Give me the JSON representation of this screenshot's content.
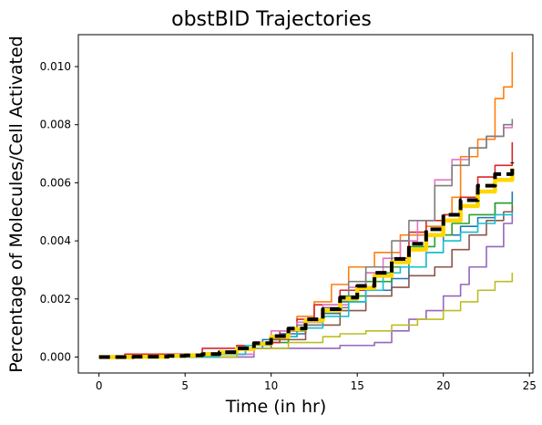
{
  "chart_data": {
    "type": "line",
    "title": "obstBID Trajectories",
    "xlabel": "Time (in hr)",
    "ylabel": "Percentage of Molecules/Cell Activated",
    "xlim": [
      -1.2,
      25.2
    ],
    "ylim": [
      -0.00055,
      0.0111
    ],
    "xticks": [
      0,
      5,
      10,
      15,
      20,
      25
    ],
    "xtick_labels": [
      "0",
      "5",
      "10",
      "15",
      "20",
      "25"
    ],
    "yticks": [
      0,
      0.002,
      0.004,
      0.006,
      0.008,
      0.01
    ],
    "ytick_labels": [
      "0.000",
      "0.002",
      "0.004",
      "0.006",
      "0.008",
      "0.010"
    ],
    "grid": false,
    "legend": "none",
    "series": [
      {
        "color": "#1f77b4",
        "points": [
          [
            0,
            0
          ],
          [
            5,
            0
          ],
          [
            7,
            0.0001
          ],
          [
            8.5,
            0.0003
          ],
          [
            9.5,
            0.0006
          ],
          [
            10.5,
            0.0008
          ],
          [
            12,
            0.0012
          ],
          [
            13,
            0.0015
          ],
          [
            14,
            0.0019
          ],
          [
            15.5,
            0.0023
          ],
          [
            17,
            0.0027
          ],
          [
            18,
            0.0031
          ],
          [
            19,
            0.0036
          ],
          [
            20,
            0.0042
          ],
          [
            21,
            0.0045
          ],
          [
            22,
            0.0048
          ],
          [
            23,
            0.0053
          ],
          [
            24,
            0.0057
          ]
        ]
      },
      {
        "color": "#ff7f0e",
        "points": [
          [
            0,
            0
          ],
          [
            5,
            0
          ],
          [
            7,
            0.0001
          ],
          [
            8.5,
            0.0004
          ],
          [
            10,
            0.0007
          ],
          [
            11.5,
            0.0014
          ],
          [
            12.5,
            0.0019
          ],
          [
            13.5,
            0.0025
          ],
          [
            14.5,
            0.0031
          ],
          [
            16,
            0.0036
          ],
          [
            17.5,
            0.0042
          ],
          [
            19,
            0.0045
          ],
          [
            20,
            0.0049
          ],
          [
            20.5,
            0.0055
          ],
          [
            21,
            0.0069
          ],
          [
            22,
            0.0075
          ],
          [
            23,
            0.0089
          ],
          [
            23.5,
            0.0093
          ],
          [
            24,
            0.0105
          ]
        ]
      },
      {
        "color": "#2ca02c",
        "points": [
          [
            0,
            0
          ],
          [
            5,
            0
          ],
          [
            7,
            0.0001
          ],
          [
            9,
            0.0005
          ],
          [
            11,
            0.0009
          ],
          [
            12,
            0.0013
          ],
          [
            13,
            0.0016
          ],
          [
            14,
            0.0021
          ],
          [
            15.5,
            0.0026
          ],
          [
            17,
            0.0031
          ],
          [
            18,
            0.0038
          ],
          [
            19.5,
            0.0042
          ],
          [
            20.5,
            0.0046
          ],
          [
            21.5,
            0.0049
          ],
          [
            23,
            0.0053
          ],
          [
            24,
            0.0051
          ]
        ]
      },
      {
        "color": "#d62728",
        "points": [
          [
            0,
            0
          ],
          [
            1.5,
            0.0001
          ],
          [
            4,
            0.0001
          ],
          [
            6,
            0.0003
          ],
          [
            8,
            0.0004
          ],
          [
            9.5,
            0.0005
          ],
          [
            10.5,
            0.0009
          ],
          [
            11.5,
            0.0013
          ],
          [
            12.5,
            0.0018
          ],
          [
            14,
            0.0023
          ],
          [
            15.5,
            0.0029
          ],
          [
            17,
            0.0034
          ],
          [
            18,
            0.0043
          ],
          [
            19,
            0.0047
          ],
          [
            20,
            0.0049
          ],
          [
            21,
            0.0055
          ],
          [
            22,
            0.0062
          ],
          [
            23,
            0.0066
          ],
          [
            24,
            0.0074
          ]
        ]
      },
      {
        "color": "#9467bd",
        "points": [
          [
            0,
            0
          ],
          [
            5,
            0
          ],
          [
            9,
            0.0003
          ],
          [
            12,
            0.0003
          ],
          [
            14,
            0.0004
          ],
          [
            15,
            0.0004
          ],
          [
            16,
            0.0005
          ],
          [
            17,
            0.0009
          ],
          [
            18,
            0.0013
          ],
          [
            19,
            0.0016
          ],
          [
            20,
            0.0021
          ],
          [
            21,
            0.0025
          ],
          [
            21.5,
            0.0031
          ],
          [
            22.5,
            0.0038
          ],
          [
            23.5,
            0.0046
          ],
          [
            24,
            0.0051
          ]
        ]
      },
      {
        "color": "#8c564b",
        "points": [
          [
            0,
            0
          ],
          [
            5,
            0
          ],
          [
            8,
            0.0003
          ],
          [
            10,
            0.0006
          ],
          [
            12,
            0.0011
          ],
          [
            14,
            0.0016
          ],
          [
            15.5,
            0.0021
          ],
          [
            17,
            0.0024
          ],
          [
            18,
            0.0028
          ],
          [
            19.5,
            0.0031
          ],
          [
            20.5,
            0.0037
          ],
          [
            21.5,
            0.0042
          ],
          [
            22.5,
            0.0047
          ],
          [
            23.5,
            0.005
          ],
          [
            24,
            0.0052
          ]
        ]
      },
      {
        "color": "#e377c2",
        "points": [
          [
            0,
            0
          ],
          [
            5,
            0
          ],
          [
            7,
            0.0001
          ],
          [
            9,
            0.0005
          ],
          [
            10,
            0.0009
          ],
          [
            11.5,
            0.0012
          ],
          [
            13,
            0.0018
          ],
          [
            14.5,
            0.0024
          ],
          [
            15.5,
            0.0029
          ],
          [
            16.5,
            0.0034
          ],
          [
            17.5,
            0.004
          ],
          [
            18.5,
            0.0047
          ],
          [
            19.5,
            0.0061
          ],
          [
            20.5,
            0.0068
          ],
          [
            21.5,
            0.0072
          ],
          [
            22.5,
            0.0076
          ],
          [
            23.5,
            0.0079
          ],
          [
            24,
            0.008
          ]
        ]
      },
      {
        "color": "#7f7f7f",
        "points": [
          [
            0,
            0
          ],
          [
            5,
            0
          ],
          [
            7,
            0.0001
          ],
          [
            8.5,
            0.0004
          ],
          [
            10,
            0.0007
          ],
          [
            11.5,
            0.0011
          ],
          [
            13,
            0.0017
          ],
          [
            14.5,
            0.0026
          ],
          [
            15.5,
            0.0031
          ],
          [
            17,
            0.004
          ],
          [
            18,
            0.0047
          ],
          [
            19.5,
            0.0059
          ],
          [
            20.5,
            0.0066
          ],
          [
            21.5,
            0.0072
          ],
          [
            22.5,
            0.0076
          ],
          [
            23.5,
            0.008
          ],
          [
            24,
            0.0082
          ]
        ]
      },
      {
        "color": "#bcbd22",
        "points": [
          [
            0,
            0
          ],
          [
            5,
            0
          ],
          [
            8,
            0.0003
          ],
          [
            11,
            0.0005
          ],
          [
            13,
            0.0007
          ],
          [
            14,
            0.0008
          ],
          [
            15.5,
            0.0009
          ],
          [
            17,
            0.0011
          ],
          [
            18.5,
            0.0013
          ],
          [
            20,
            0.0016
          ],
          [
            21,
            0.0019
          ],
          [
            22,
            0.0023
          ],
          [
            23,
            0.0026
          ],
          [
            24,
            0.0029
          ]
        ]
      },
      {
        "color": "#17becf",
        "points": [
          [
            0,
            0
          ],
          [
            5,
            0
          ],
          [
            7,
            0.0001
          ],
          [
            8.5,
            0.0004
          ],
          [
            10,
            0.0007
          ],
          [
            11.5,
            0.001
          ],
          [
            13,
            0.0014
          ],
          [
            14.5,
            0.0019
          ],
          [
            15.5,
            0.0023
          ],
          [
            16.5,
            0.0029
          ],
          [
            17.5,
            0.0031
          ],
          [
            19,
            0.0036
          ],
          [
            20,
            0.004
          ],
          [
            21,
            0.0043
          ],
          [
            22,
            0.0046
          ],
          [
            23,
            0.0049
          ],
          [
            24,
            0.005
          ]
        ]
      },
      {
        "color": "#ffd700",
        "width": 4.5,
        "points": [
          [
            0,
            0
          ],
          [
            2,
            1e-05
          ],
          [
            4,
            4e-05
          ],
          [
            5,
            6e-05
          ],
          [
            6,
            0.0001
          ],
          [
            7,
            0.00016
          ],
          [
            8,
            0.00028
          ],
          [
            9,
            0.00046
          ],
          [
            10,
            0.0007
          ],
          [
            11,
            0.00096
          ],
          [
            12,
            0.00126
          ],
          [
            13,
            0.0016
          ],
          [
            14,
            0.002
          ],
          [
            15,
            0.00238
          ],
          [
            16,
            0.0028
          ],
          [
            17,
            0.00327
          ],
          [
            18,
            0.0037
          ],
          [
            19,
            0.0042
          ],
          [
            20,
            0.0047
          ],
          [
            21,
            0.0052
          ],
          [
            22,
            0.0057
          ],
          [
            23,
            0.0061
          ],
          [
            24,
            0.0065
          ]
        ]
      },
      {
        "color": "#000000",
        "width": 4,
        "dashed": true,
        "points": [
          [
            0,
            0
          ],
          [
            2,
            1e-05
          ],
          [
            4,
            4e-05
          ],
          [
            5,
            6e-05
          ],
          [
            6,
            0.0001
          ],
          [
            7,
            0.00017
          ],
          [
            8,
            0.0003
          ],
          [
            9,
            0.00048
          ],
          [
            10,
            0.00072
          ],
          [
            11,
            0.00098
          ],
          [
            12,
            0.0013
          ],
          [
            13,
            0.00165
          ],
          [
            14,
            0.00205
          ],
          [
            15,
            0.00245
          ],
          [
            16,
            0.0029
          ],
          [
            17,
            0.00338
          ],
          [
            18,
            0.0039
          ],
          [
            19,
            0.0044
          ],
          [
            20,
            0.0049
          ],
          [
            21,
            0.0054
          ],
          [
            22,
            0.0059
          ],
          [
            23,
            0.0063
          ],
          [
            24,
            0.0067
          ]
        ]
      }
    ]
  }
}
